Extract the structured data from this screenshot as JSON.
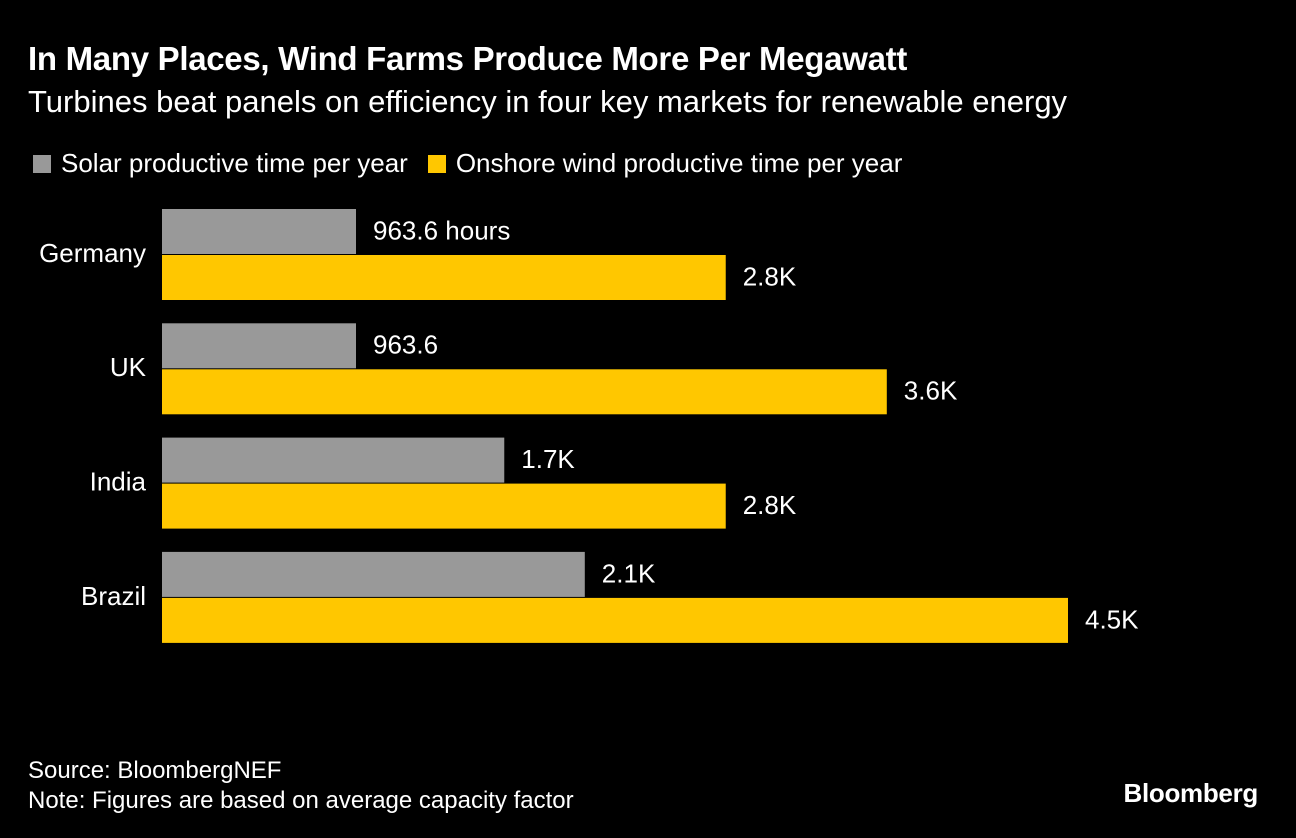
{
  "title": "In Many Places, Wind Farms Produce More Per Megawatt",
  "subtitle": "Turbines beat panels on efficiency in four key markets for renewable energy",
  "legend": {
    "solar": "Solar productive time per year",
    "wind": "Onshore wind productive time per year"
  },
  "colors": {
    "background": "#000000",
    "solar": "#999999",
    "wind": "#ffc700",
    "text": "#ffffff"
  },
  "chart_data": {
    "type": "bar",
    "orientation": "horizontal",
    "categories": [
      "Germany",
      "UK",
      "India",
      "Brazil"
    ],
    "series": [
      {
        "name": "Solar productive time per year",
        "values": [
          963.6,
          963.6,
          1700,
          2100
        ],
        "labels": [
          "963.6 hours",
          "963.6",
          "1.7K",
          "2.1K"
        ]
      },
      {
        "name": "Onshore wind productive time per year",
        "values": [
          2800,
          3600,
          2800,
          4500
        ],
        "labels": [
          "2.8K",
          "3.6K",
          "2.8K",
          "4.5K"
        ]
      }
    ],
    "xlim": [
      0,
      4500
    ],
    "grid": false,
    "legend_position": "top-left"
  },
  "footer": {
    "source": "Source: BloombergNEF",
    "note": "Note: Figures are based on average capacity factor"
  },
  "brand": "Bloomberg"
}
